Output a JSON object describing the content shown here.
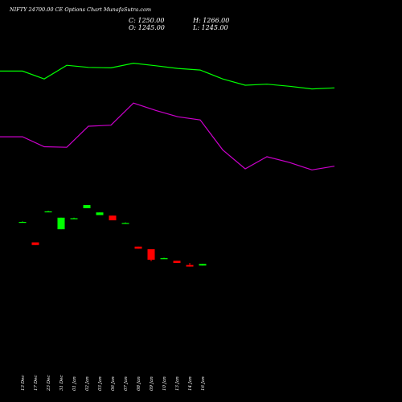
{
  "chart_data": {
    "type": "candlestick",
    "title": "NIFTY 24700.00  CE Options  Chart MunafaSutra.com",
    "ohlc": {
      "c_label": "C: 1250.00",
      "h_label": "H: 1266.00",
      "o_label": "O: 1245.00",
      "l_label": "L: 1245.00"
    },
    "price_range": [
      1200,
      1780
    ],
    "categories": [
      "13 Dec",
      "17 Dec",
      "23 Dec",
      "31 Dec",
      "01 Jan",
      "02 Jan",
      "03 Jan",
      "06 Jan",
      "07 Jan",
      "08 Jan",
      "09 Jan",
      "10 Jan",
      "13 Jan",
      "14 Jan",
      "16 Jan"
    ],
    "candles": [
      {
        "open": 1558,
        "high": 1559,
        "low": 1557,
        "close": 1558
      },
      {
        "open": 1519,
        "high": 1519,
        "low": 1514,
        "close": 1514
      },
      {
        "open": 1578,
        "high": 1579,
        "low": 1577,
        "close": 1578
      },
      {
        "open": 1544,
        "high": 1566,
        "low": 1544,
        "close": 1566
      },
      {
        "open": 1565,
        "high": 1566,
        "low": 1564,
        "close": 1565
      },
      {
        "open": 1584,
        "high": 1590,
        "low": 1584,
        "close": 1590
      },
      {
        "open": 1571,
        "high": 1576,
        "low": 1571,
        "close": 1576
      },
      {
        "open": 1570,
        "high": 1570,
        "low": 1561,
        "close": 1561
      },
      {
        "open": 1556,
        "high": 1557,
        "low": 1555,
        "close": 1556
      },
      {
        "open": 1511,
        "high": 1511,
        "low": 1507,
        "close": 1507
      },
      {
        "open": 1506,
        "high": 1506,
        "low": 1483,
        "close": 1486
      },
      {
        "open": 1489,
        "high": 1490,
        "low": 1488,
        "close": 1489
      },
      {
        "open": 1484,
        "high": 1484,
        "low": 1480,
        "close": 1480
      },
      {
        "open": 1476,
        "high": 1480,
        "low": 1473,
        "close": 1473
      },
      {
        "open": 1475,
        "high": 1478,
        "low": 1475,
        "close": 1478
      }
    ],
    "overlay_series": [
      {
        "color": "#00ff00",
        "values": [
          1845,
          1845,
          1830,
          1856,
          1852,
          1851,
          1860,
          1855,
          1850,
          1847,
          1830,
          1818,
          1820,
          1816,
          1811,
          1813
        ]
      },
      {
        "color": "#cc00cc",
        "values": [
          1720,
          1720,
          1701,
          1700,
          1740,
          1742,
          1784,
          1770,
          1758,
          1752,
          1695,
          1659,
          1682,
          1671,
          1657,
          1664
        ]
      }
    ],
    "overlay_x": [
      0,
      28,
      55,
      83,
      110,
      138,
      166,
      194,
      221,
      249,
      277,
      305,
      332,
      360,
      388,
      416
    ]
  },
  "colors": {
    "background": "#000000",
    "up_candle": "#00ff00",
    "down_candle": "#ff0000",
    "text": "#ffffff"
  }
}
